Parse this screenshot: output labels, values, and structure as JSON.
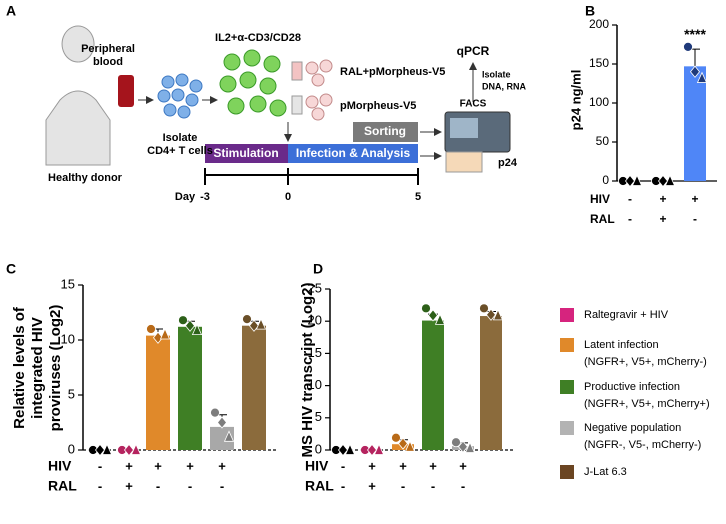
{
  "panel_labels": [
    "A",
    "B",
    "C",
    "D"
  ],
  "diagram": {
    "peripheral_blood": [
      "Peripheral",
      "blood"
    ],
    "healthy_donor": "Healthy donor",
    "isolate_cells": [
      "Isolate",
      "CD4+ T cells"
    ],
    "stimulant": "IL2+α-CD3/CD28",
    "ral_virus": "RAL+pMorpheus-V5",
    "virus": "pMorpheus-V5",
    "qpcr": "qPCR",
    "isolate_nucleic": [
      "Isolate",
      "DNA, RNA"
    ],
    "facs": "FACS",
    "sorting": "Sorting",
    "stimulation": "Stimulation",
    "infection": "Infection & Analysis",
    "p24": "p24",
    "day": "Day",
    "days": [
      "-3",
      "0",
      "5"
    ]
  },
  "chart_data": [
    {
      "type": "bar",
      "ylabel": [
        "p24 ng/ml"
      ],
      "ylim": [
        0,
        200
      ],
      "yticks": [
        0,
        50,
        100,
        150,
        200
      ],
      "baseline": "solid",
      "condition_rows": [
        {
          "name": "HIV",
          "labels": [
            "-",
            "+",
            "+"
          ]
        },
        {
          "name": "RAL",
          "labels": [
            "-",
            "+",
            "-"
          ]
        }
      ],
      "values": [
        0,
        0,
        147
      ],
      "errors": [
        null,
        null,
        22
      ],
      "colors": [
        "#000000",
        "#000000",
        "#4f86f7"
      ],
      "point_colors": [
        "#000000",
        "#000000",
        "#1f3a7a"
      ],
      "points": [
        [
          0,
          0,
          0
        ],
        [
          0,
          0,
          0
        ],
        [
          172,
          140,
          132
        ]
      ],
      "annotation": "****",
      "annotation_index": 2
    },
    {
      "type": "bar",
      "ylabel": [
        "Relative levels of",
        "integrated HIV",
        "proviruses (Log2)"
      ],
      "ylim": [
        0,
        15
      ],
      "yticks": [
        0,
        5,
        10,
        15
      ],
      "baseline": "dashed",
      "condition_rows": [
        {
          "name": "HIV",
          "labels": [
            "-",
            "+",
            "+",
            "+",
            "+",
            null
          ]
        },
        {
          "name": "RAL",
          "labels": [
            "-",
            "+",
            "-",
            "-",
            "-",
            null
          ]
        }
      ],
      "values": [
        0,
        0,
        10.4,
        11.2,
        2.1,
        11.3
      ],
      "errors": [
        null,
        null,
        0.6,
        0.5,
        1.1,
        0.4
      ],
      "colors": [
        "#000000",
        "#b5245f",
        "#e0892a",
        "#3f7f25",
        "#a8a8a8",
        "#8b6b3c"
      ],
      "point_colors": [
        "#000000",
        "#b5245f",
        "#b86a18",
        "#2d6019",
        "#7d7d7d",
        "#6a4f28"
      ],
      "points": [
        [
          0,
          0,
          0
        ],
        [
          0,
          0,
          0
        ],
        [
          11.0,
          10.2,
          10.5
        ],
        [
          11.8,
          11.3,
          10.9
        ],
        [
          3.4,
          2.5,
          1.2
        ],
        [
          11.9,
          11.3,
          11.4
        ]
      ]
    },
    {
      "type": "bar",
      "ylabel": [
        "MS HIV transcript (Log2)"
      ],
      "ylim": [
        0,
        25
      ],
      "yticks": [
        0,
        5,
        10,
        15,
        20,
        25
      ],
      "baseline": "dashed",
      "condition_rows": [
        {
          "name": "HIV",
          "labels": [
            "-",
            "+",
            "+",
            "+",
            "+",
            null
          ]
        },
        {
          "name": "RAL",
          "labels": [
            "-",
            "+",
            "-",
            "-",
            "-",
            null
          ]
        }
      ],
      "values": [
        0,
        0,
        0.9,
        20.1,
        0.6,
        20.8
      ],
      "errors": [
        null,
        null,
        0.7,
        1.0,
        0.5,
        0.7
      ],
      "colors": [
        "#000000",
        "#b5245f",
        "#e0892a",
        "#3f7f25",
        "#a8a8a8",
        "#8b6b3c"
      ],
      "point_colors": [
        "#000000",
        "#b5245f",
        "#b86a18",
        "#2d6019",
        "#7d7d7d",
        "#6a4f28"
      ],
      "points": [
        [
          0,
          0,
          0
        ],
        [
          0,
          0,
          0
        ],
        [
          1.9,
          1.0,
          0.5
        ],
        [
          22,
          20.9,
          20.2
        ],
        [
          1.2,
          0.5,
          0.3
        ],
        [
          22,
          21,
          20.9
        ]
      ]
    }
  ],
  "legend": [
    {
      "color": "#d6247e",
      "lines": [
        "Raltegravir + HIV"
      ]
    },
    {
      "color": "#e0892a",
      "lines": [
        "Latent infection",
        "(NGFR+, V5+, mCherry-)"
      ]
    },
    {
      "color": "#3f7f25",
      "lines": [
        "Productive infection",
        "(NGFR+, V5+, mCherry+)"
      ]
    },
    {
      "color": "#b3b3b3",
      "lines": [
        "Negative population",
        "(NGFR-, V5-,  mCherry-)"
      ]
    },
    {
      "color": "#6b4522",
      "lines": [
        "J-Lat 6.3"
      ]
    }
  ]
}
